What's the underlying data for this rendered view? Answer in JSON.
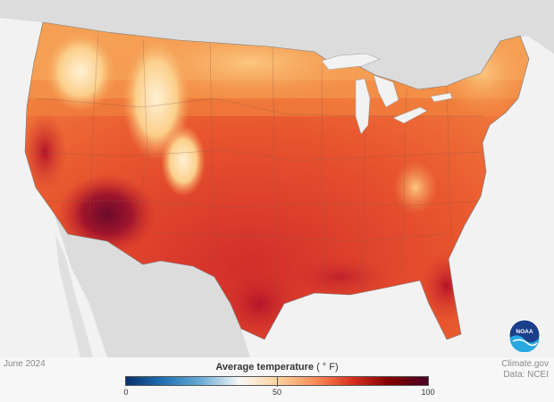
{
  "map": {
    "date": "June 2024",
    "legend": {
      "title": "Average temperature",
      "unit": "( ° F)",
      "min": "0",
      "mid": "50",
      "max": "100",
      "colors": [
        "#08306b",
        "#2171b5",
        "#6baed6",
        "#f7f7f7",
        "#fdd49e",
        "#fc8d59",
        "#d7301f",
        "#7f0000",
        "#4a0024"
      ]
    },
    "credit": {
      "line1": "Climate.gov",
      "line2": "Data: NCEI"
    },
    "logo_text": "NOAA",
    "colors": {
      "background": "#f2f2f2",
      "land_other": "#dcdcdc",
      "water": "#f2f2f2",
      "hot": "#b5142a",
      "warm": "#e5542d",
      "mild": "#f7a35c",
      "cool": "#fde2b3"
    }
  }
}
